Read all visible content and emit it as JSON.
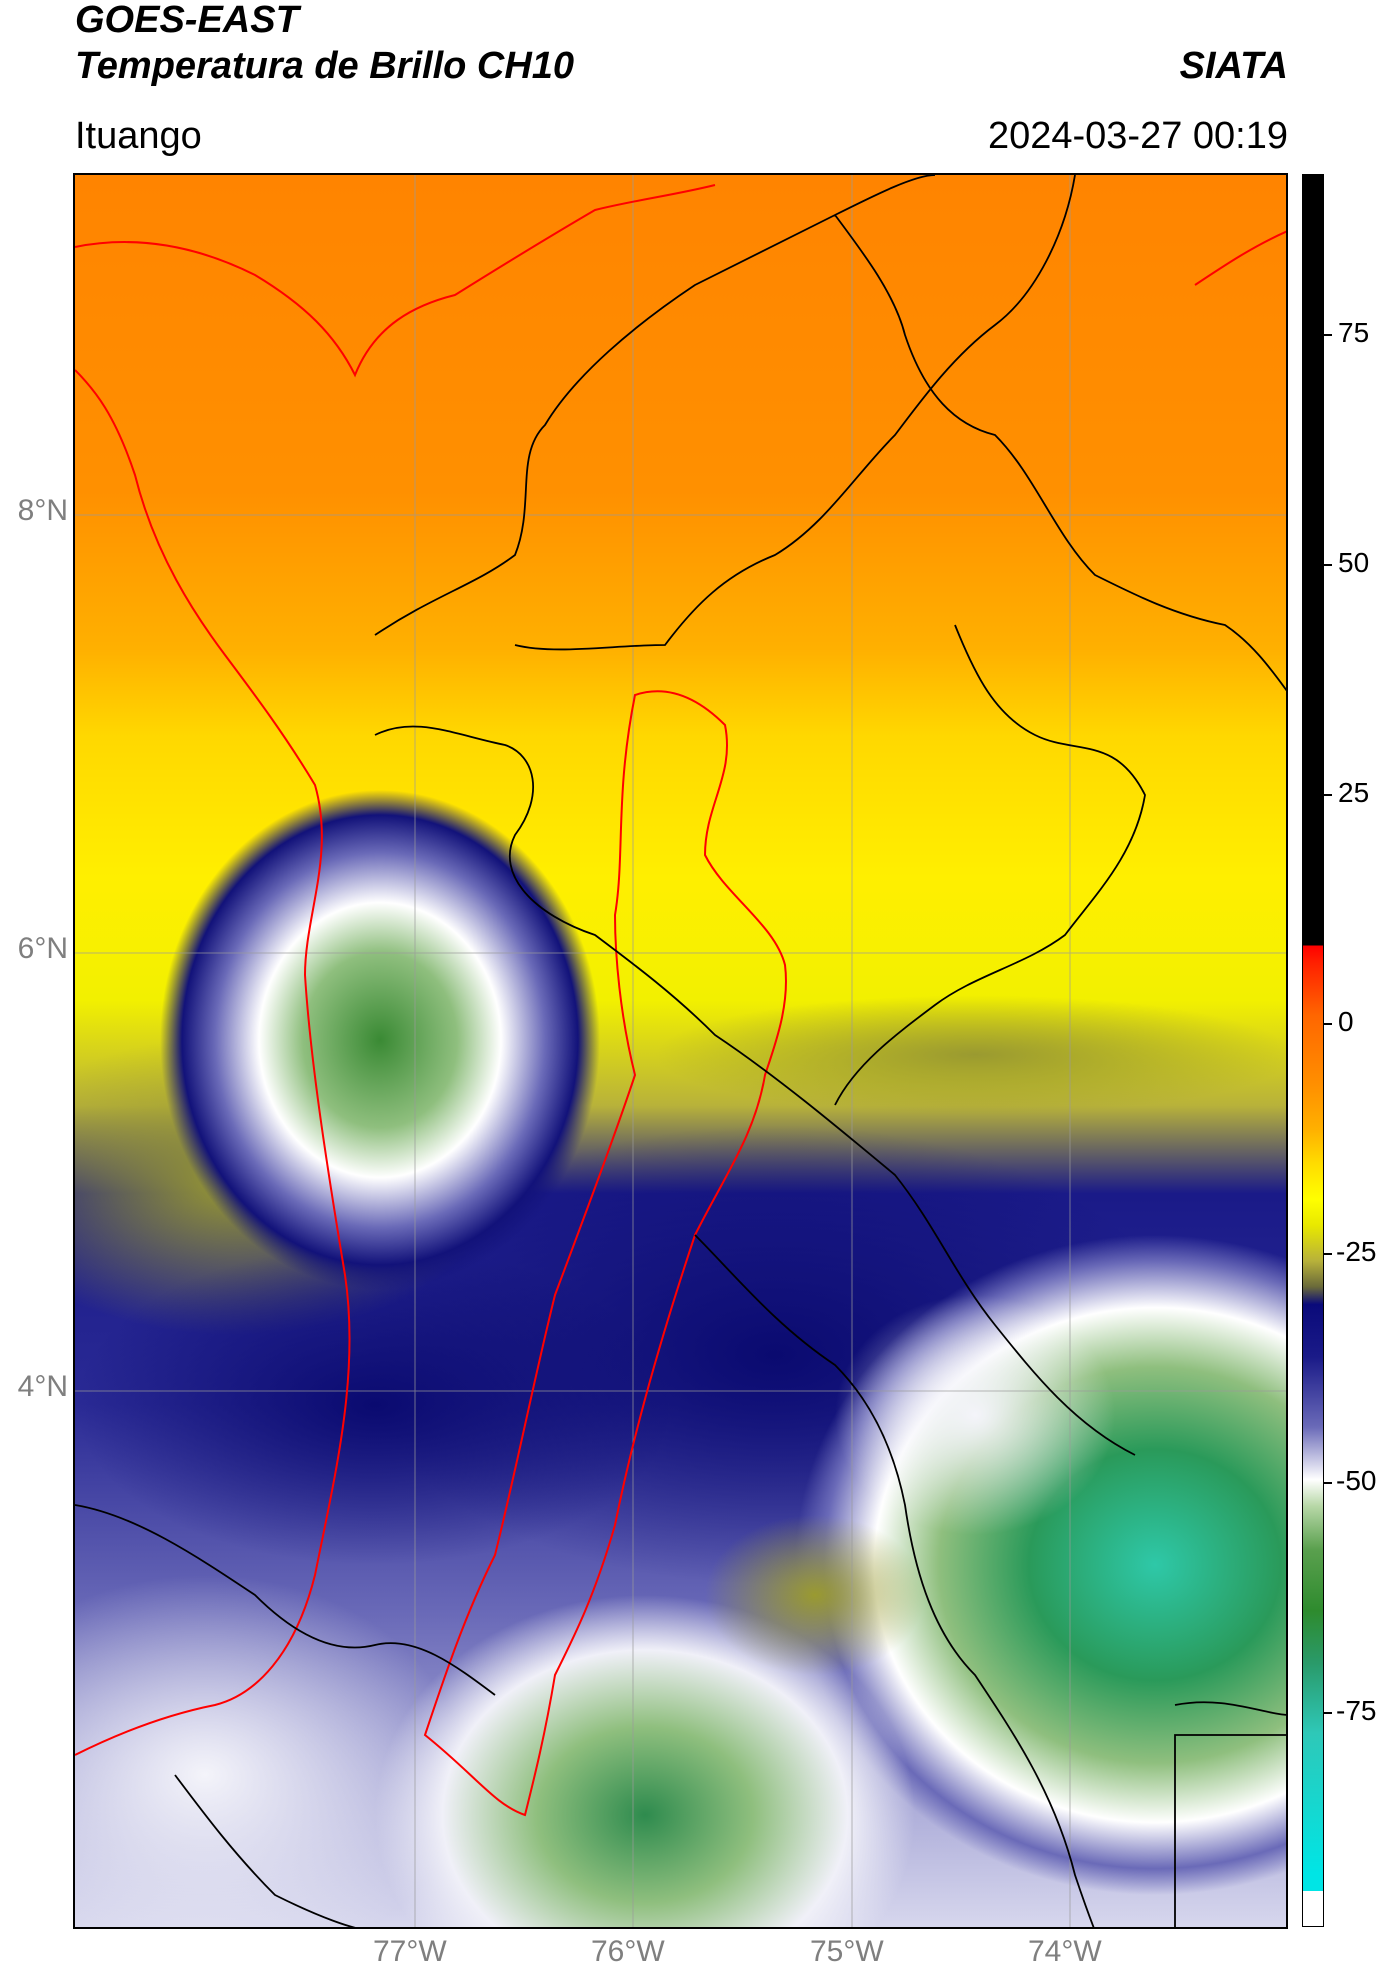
{
  "header": {
    "satellite": "GOES-EAST",
    "product": "Temperatura de Brillo CH10",
    "org": "SIATA",
    "region": "Ituango",
    "datetime": "2024-03-27 00:19"
  },
  "map": {
    "lat_labels": [
      "8°N",
      "6°N",
      "4°N"
    ],
    "lon_labels": [
      "77°W",
      "76°W",
      "75°W",
      "74°W"
    ]
  },
  "colorbar": {
    "ticks": [
      "75",
      "50",
      "25",
      "0",
      "-25",
      "-50",
      "-75"
    ],
    "range": [
      -92,
      92
    ],
    "colors": {
      "black": "#000000",
      "red": "#ff0000",
      "orange": "#ff8c00",
      "yellow": "#ffff00",
      "olive": "#8a8a2a",
      "navy": "#0a0a7a",
      "white": "#ffffff",
      "green": "#2e8b2e",
      "cyan": "#00e5e5"
    }
  }
}
